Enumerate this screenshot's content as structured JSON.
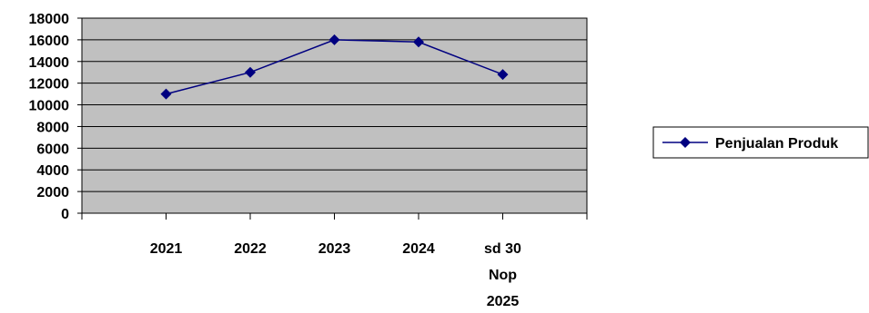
{
  "chart_data": {
    "type": "line",
    "categories": [
      "2021",
      "2022",
      "2023",
      "2024",
      "sd 30 Nop 2025"
    ],
    "category_label_lines": [
      [
        "2021"
      ],
      [
        "2022"
      ],
      [
        "2023"
      ],
      [
        "2024"
      ],
      [
        "sd 30",
        "Nop",
        "2025"
      ]
    ],
    "series": [
      {
        "name": "Penjualan Produk",
        "values": [
          11000,
          13000,
          16000,
          15800,
          12800
        ]
      }
    ],
    "ylim": [
      0,
      18000
    ],
    "yticks": [
      0,
      2000,
      4000,
      6000,
      8000,
      10000,
      12000,
      14000,
      16000,
      18000
    ],
    "grid": true,
    "legend_position": "right",
    "colors": {
      "plot_background": "#c0c0c0",
      "series_line": "#000080",
      "gridline": "#000000"
    }
  }
}
